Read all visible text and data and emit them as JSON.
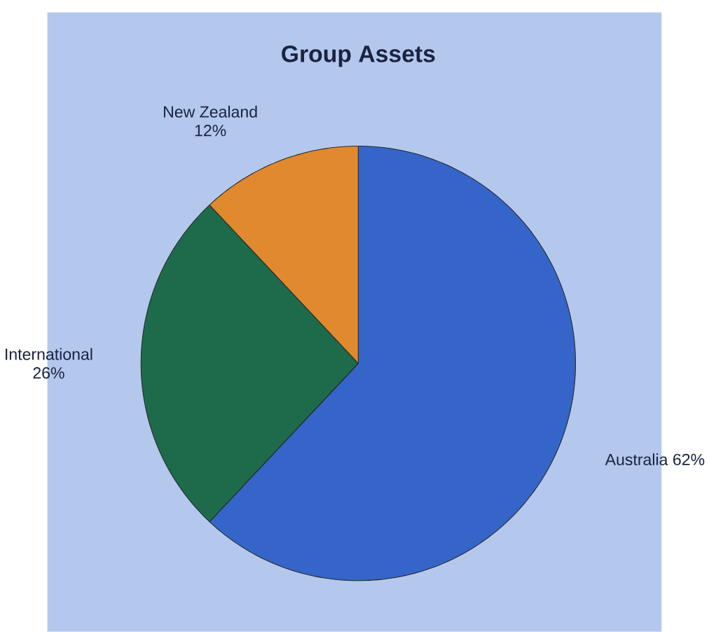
{
  "chart_data": {
    "type": "pie",
    "title": "Group Assets",
    "categories": [
      "Australia",
      "International",
      "New Zealand"
    ],
    "values": [
      62,
      26,
      12
    ],
    "value_labels": [
      "62%",
      "26%",
      "12%"
    ],
    "colors": [
      "#3565c8",
      "#1e6b4c",
      "#e0892e"
    ]
  }
}
